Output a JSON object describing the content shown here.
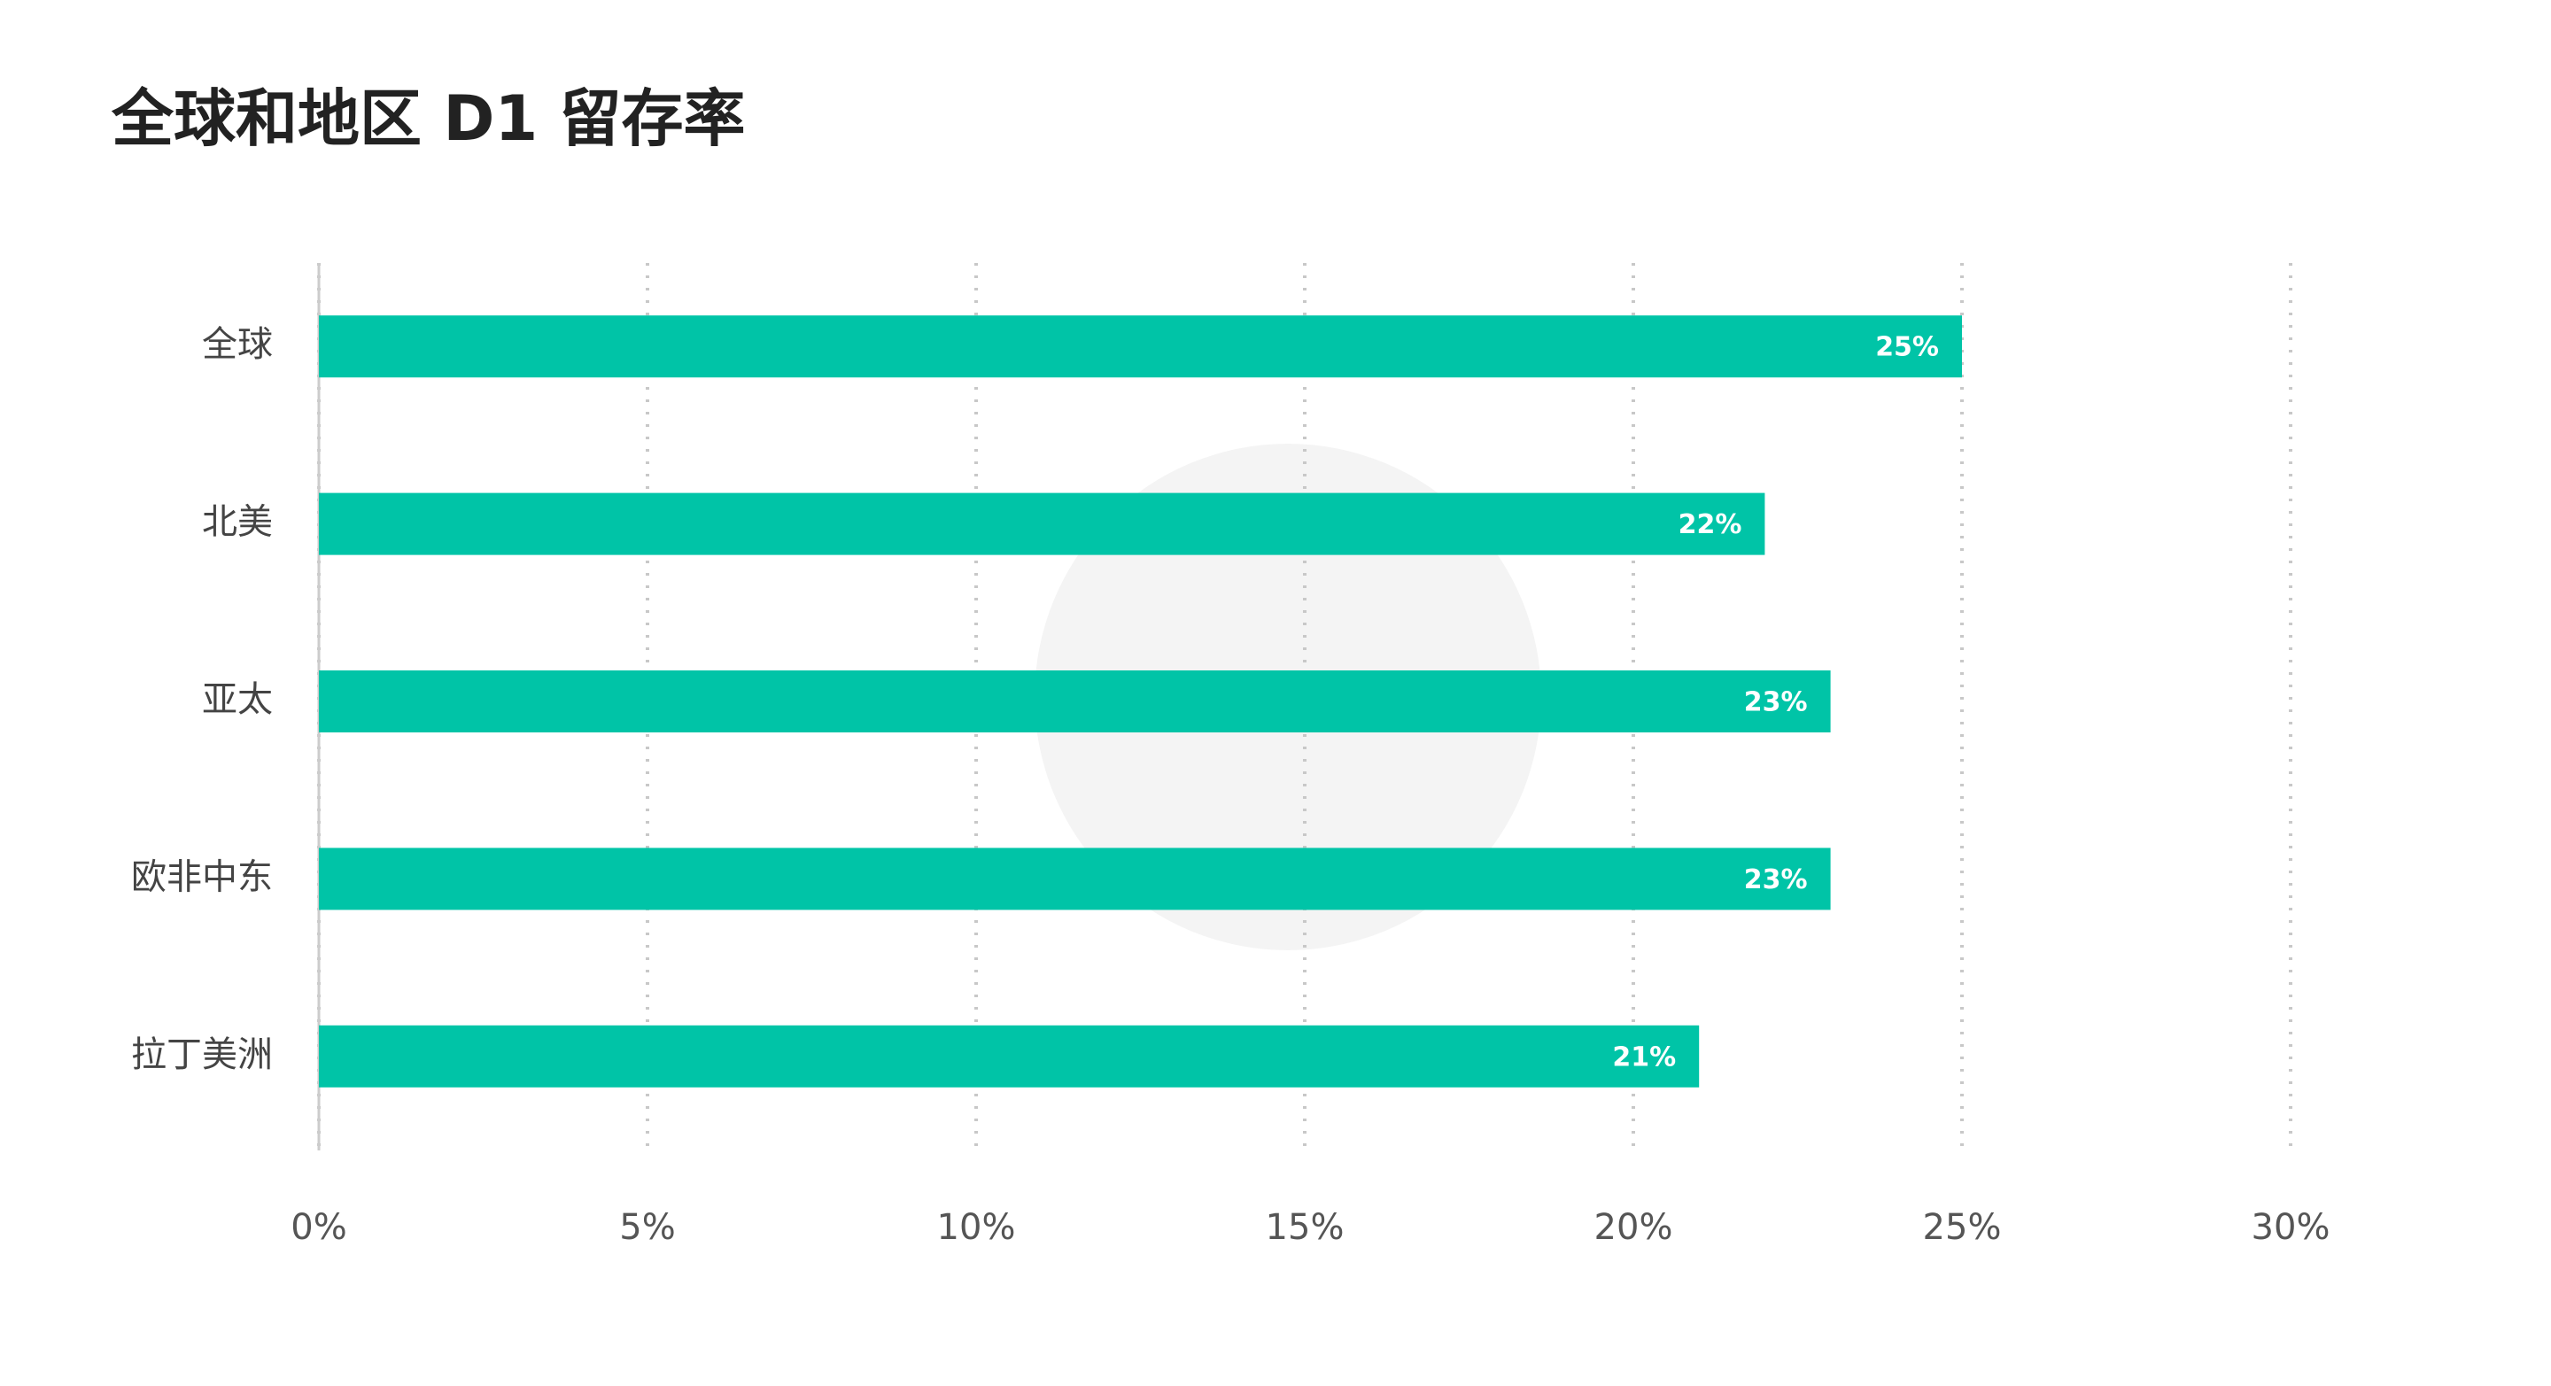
{
  "chart_data": {
    "type": "bar",
    "orientation": "horizontal",
    "title": "全球和地区 D1 留存率",
    "categories": [
      "全球",
      "北美",
      "亚太",
      "欧非中东",
      "拉丁美洲"
    ],
    "values": [
      25,
      22,
      23,
      23,
      21
    ],
    "value_labels": [
      "25%",
      "22%",
      "23%",
      "23%",
      "21%"
    ],
    "color": "#00c4a7",
    "xlim": [
      0,
      30
    ],
    "xticks": [
      {
        "value": 0,
        "label": "0%"
      },
      {
        "value": 5,
        "label": "5%"
      },
      {
        "value": 10,
        "label": "10%"
      },
      {
        "value": 15,
        "label": "15%"
      },
      {
        "value": 20,
        "label": "20%"
      },
      {
        "value": 25,
        "label": "25%"
      },
      {
        "value": 30,
        "label": "30%"
      }
    ],
    "grid": true
  }
}
